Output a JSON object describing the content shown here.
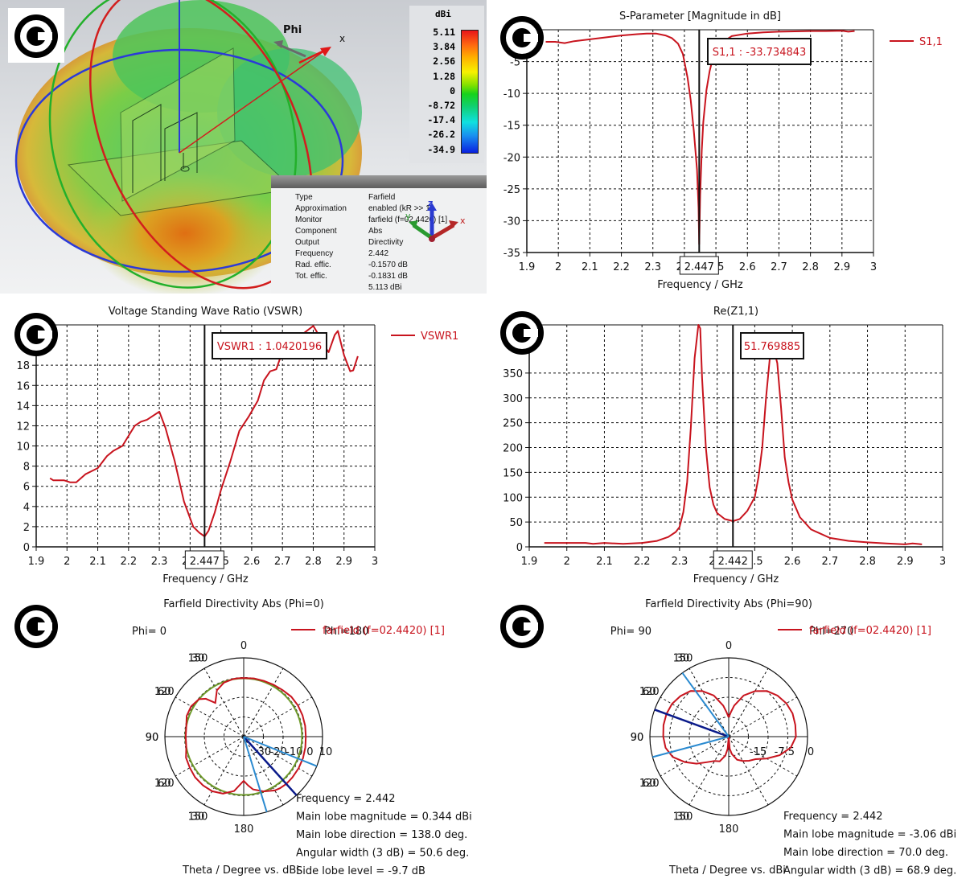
{
  "copyright_symbol": "©",
  "view3d": {
    "phi_label": "Phi",
    "x_axis_label": "x",
    "colorbar": {
      "unit": "dBi",
      "ticks": [
        "5.11",
        "3.84",
        "2.56",
        "1.28",
        "0",
        "-8.72",
        "-17.4",
        "-26.2",
        "-34.9"
      ]
    },
    "info": [
      {
        "key": "Type",
        "value": "Farfield"
      },
      {
        "key": "Approximation",
        "value": "enabled (kR >> 1)"
      },
      {
        "key": "Monitor",
        "value": "farfield (f=02.4420) [1]"
      },
      {
        "key": "Component",
        "value": "Abs"
      },
      {
        "key": "Output",
        "value": "Directivity"
      },
      {
        "key": "Frequency",
        "value": "2.442"
      },
      {
        "key": "Rad. effic.",
        "value": "-0.1570 dB"
      },
      {
        "key": "Tot. effic.",
        "value": "-0.1831 dB"
      },
      {
        "key": "",
        "value": "5.113 dBi"
      }
    ],
    "axes_triad": {
      "x": "x",
      "y": "y",
      "z": "z"
    },
    "colors": {
      "x_axis": "#e02020",
      "y_axis": "#20a030",
      "z_axis": "#2040c0"
    }
  },
  "chart_data": [
    {
      "id": "sparam",
      "type": "line",
      "title": "S-Parameter [Magnitude in dB]",
      "xlabel": "Frequency / GHz",
      "ylabel": "",
      "xlim": [
        1.9,
        3.0
      ],
      "ylim": [
        -35,
        0
      ],
      "xticks": [
        "1.9",
        "2",
        "2.1",
        "2.2",
        "2.3",
        "2.4",
        "2.5",
        "2.6",
        "2.7",
        "2.8",
        "2.9",
        "3"
      ],
      "yticks": [
        "-5",
        "-10",
        "-15",
        "-20",
        "-25",
        "-30",
        "-35"
      ],
      "grid": true,
      "legend": {
        "position": "top-right",
        "entries": [
          "S1,1"
        ]
      },
      "marker": {
        "x": 2.447,
        "x_label": "2.447",
        "annotation": "S1,1 : -33.734843"
      },
      "series": [
        {
          "name": "S1,1",
          "color": "#c8141e",
          "x": [
            1.96,
            1.99,
            2.02,
            2.05,
            2.1,
            2.15,
            2.2,
            2.25,
            2.28,
            2.31,
            2.34,
            2.36,
            2.38,
            2.395,
            2.41,
            2.42,
            2.43,
            2.44,
            2.445,
            2.447,
            2.45,
            2.455,
            2.46,
            2.47,
            2.48,
            2.49,
            2.5,
            2.52,
            2.55,
            2.6,
            2.65,
            2.7,
            2.75,
            2.8,
            2.85,
            2.9,
            2.92,
            2.94
          ],
          "y": [
            -1.9,
            -1.9,
            -2.1,
            -1.8,
            -1.5,
            -1.2,
            -0.9,
            -0.7,
            -0.6,
            -0.6,
            -0.9,
            -1.3,
            -2.2,
            -3.8,
            -7.5,
            -11.0,
            -16.0,
            -22.0,
            -28.0,
            -33.7,
            -26.0,
            -19.0,
            -14.5,
            -9.5,
            -6.5,
            -4.5,
            -3.2,
            -2.0,
            -1.0,
            -0.6,
            -0.4,
            -0.3,
            -0.25,
            -0.2,
            -0.2,
            -0.15,
            -0.3,
            -0.2
          ]
        }
      ]
    },
    {
      "id": "vswr",
      "type": "line",
      "title": "Voltage Standing Wave Ratio (VSWR)",
      "xlabel": "Frequency / GHz",
      "ylabel": "",
      "xlim": [
        1.9,
        3.0
      ],
      "ylim": [
        0,
        22
      ],
      "xticks": [
        "1.9",
        "2",
        "2.1",
        "2.2",
        "2.3",
        "2.4",
        "2.5",
        "2.6",
        "2.7",
        "2.8",
        "2.9",
        "3"
      ],
      "yticks": [
        "0",
        "2",
        "4",
        "6",
        "8",
        "10",
        "12",
        "14",
        "16",
        "18"
      ],
      "grid": true,
      "legend": {
        "position": "top-right",
        "entries": [
          "VSWR1"
        ]
      },
      "marker": {
        "x": 2.447,
        "x_label": "2.447",
        "annotation": "VSWR1 : 1.0420196"
      },
      "series": [
        {
          "name": "VSWR1",
          "color": "#c8141e",
          "x": [
            1.945,
            1.955,
            1.97,
            1.99,
            2.01,
            2.03,
            2.06,
            2.08,
            2.1,
            2.13,
            2.15,
            2.18,
            2.2,
            2.22,
            2.24,
            2.26,
            2.28,
            2.3,
            2.32,
            2.35,
            2.38,
            2.41,
            2.43,
            2.447,
            2.46,
            2.48,
            2.5,
            2.53,
            2.56,
            2.59,
            2.62,
            2.64,
            2.66,
            2.68,
            2.69,
            2.71,
            2.74,
            2.77,
            2.8,
            2.81,
            2.83,
            2.85,
            2.87,
            2.88,
            2.9,
            2.92,
            2.93,
            2.945
          ],
          "y": [
            6.8,
            6.6,
            6.6,
            6.6,
            6.4,
            6.4,
            7.2,
            7.5,
            7.8,
            9.0,
            9.5,
            10.0,
            11.0,
            12.0,
            12.4,
            12.6,
            13.0,
            13.4,
            11.8,
            8.5,
            4.5,
            2.0,
            1.4,
            1.04,
            1.6,
            3.4,
            5.6,
            8.4,
            11.5,
            12.9,
            14.5,
            16.5,
            17.4,
            17.6,
            18.5,
            19.8,
            20.5,
            21.2,
            21.9,
            21.4,
            20.2,
            19.3,
            21.0,
            21.4,
            19.0,
            17.4,
            17.5,
            18.9
          ]
        }
      ]
    },
    {
      "id": "rez",
      "type": "line",
      "title": "Re(Z1,1)",
      "xlabel": "Frequency / GHz",
      "ylabel": "",
      "xlim": [
        1.9,
        3.0
      ],
      "ylim": [
        0,
        447
      ],
      "xticks": [
        "1.9",
        "2",
        "2.1",
        "2.2",
        "2.3",
        "2.4",
        "2.5",
        "2.6",
        "2.7",
        "2.8",
        "2.9",
        "3"
      ],
      "yticks": [
        "0",
        "50",
        "100",
        "150",
        "200",
        "250",
        "300",
        "350"
      ],
      "grid": true,
      "legend": null,
      "marker": {
        "x": 2.442,
        "x_label": "2.442",
        "annotation": "51.769885"
      },
      "series": [
        {
          "name": "Re(Z1,1)",
          "color": "#c8141e",
          "x": [
            1.94,
            2.0,
            2.05,
            2.07,
            2.1,
            2.15,
            2.2,
            2.24,
            2.27,
            2.29,
            2.3,
            2.31,
            2.32,
            2.33,
            2.34,
            2.35,
            2.355,
            2.36,
            2.37,
            2.38,
            2.39,
            2.4,
            2.42,
            2.442,
            2.46,
            2.48,
            2.5,
            2.51,
            2.52,
            2.53,
            2.54,
            2.55,
            2.56,
            2.57,
            2.58,
            2.59,
            2.6,
            2.62,
            2.65,
            2.7,
            2.75,
            2.8,
            2.85,
            2.9,
            2.92,
            2.945
          ],
          "y": [
            8,
            8,
            8,
            6,
            8,
            6,
            8,
            12,
            20,
            30,
            40,
            70,
            130,
            240,
            380,
            447,
            440,
            340,
            200,
            120,
            85,
            68,
            56,
            51.8,
            56,
            72,
            100,
            140,
            200,
            300,
            380,
            400,
            370,
            280,
            180,
            130,
            95,
            60,
            35,
            18,
            12,
            9,
            7,
            5,
            7,
            5
          ]
        }
      ]
    },
    {
      "id": "polar_phi0",
      "type": "polar",
      "title": "Farfield Directivity Abs (Phi=0)",
      "xlabel": "Theta / Degree vs. dBi",
      "legend": {
        "position": "top-right",
        "entries": [
          "farfield (f=02.4420) [1]"
        ]
      },
      "left_label": "Phi=  0",
      "right_label": "Phi=180",
      "angle_ticks": [
        "0",
        "30",
        "60",
        "90",
        "120",
        "150",
        "180",
        "150",
        "120",
        "90",
        "60",
        "30"
      ],
      "radial_ticks": [
        "-30",
        "-20",
        "-10",
        "0",
        "10"
      ],
      "rlim": [
        -40,
        10
      ],
      "reference_circle_db": -3,
      "main_lobe_angle_deg": 138.0,
      "beamwidth_lines_deg": [
        112,
        163
      ],
      "stats": [
        {
          "label": "Frequency = 2.442"
        },
        {
          "label": "Main lobe magnitude =    0.344 dBi"
        },
        {
          "label": "Main lobe direction =  138.0 deg."
        },
        {
          "label": "Angular width (3 dB) =   50.6 deg."
        },
        {
          "label": "Side lobe level =   -9.7 dB"
        }
      ],
      "series": [
        {
          "name": "farfield (f=02.4420) [1]",
          "color": "#c8141e",
          "theta_deg": [
            0,
            10,
            20,
            30,
            40,
            50,
            60,
            70,
            80,
            90,
            100,
            110,
            120,
            130,
            138,
            145,
            150,
            160,
            170,
            175,
            180,
            185,
            190,
            200,
            210,
            220,
            230,
            240,
            250,
            260,
            270,
            280,
            290,
            300,
            310,
            315,
            320,
            330,
            340,
            350,
            355,
            360
          ],
          "db": [
            -2.8,
            -2.5,
            -2.4,
            -2.0,
            -1.5,
            -0.6,
            -0.3,
            -0.3,
            -0.4,
            -0.6,
            -0.3,
            0.0,
            0.2,
            0.3,
            0.34,
            0.0,
            -0.6,
            -3.0,
            -6.0,
            -9.0,
            -12.0,
            -9.0,
            -5.0,
            -1.5,
            0.0,
            0.3,
            0.2,
            -0.5,
            -1.0,
            -3.0,
            -3.2,
            -3.0,
            -1.5,
            -1.5,
            -3.0,
            -6.0,
            -12.0,
            -6.0,
            -3.5,
            -2.8,
            -2.8,
            -2.8
          ]
        }
      ]
    },
    {
      "id": "polar_phi90",
      "type": "polar",
      "title": "Farfield Directivity Abs (Phi=90)",
      "xlabel": "Theta / Degree vs. dBi",
      "legend": {
        "position": "top-right",
        "entries": [
          "farfield (f=02.4420) [1]"
        ]
      },
      "left_label": "Phi= 90",
      "right_label": "Phi=270",
      "angle_ticks": [
        "0",
        "30",
        "60",
        "90",
        "120",
        "150",
        "180",
        "150",
        "120",
        "90",
        "60",
        "30"
      ],
      "radial_ticks": [
        "-15",
        "-7.5",
        "0"
      ],
      "rlim": [
        -22.5,
        0
      ],
      "reference_circle_db": null,
      "main_lobe_angle_deg": 70.0,
      "beamwidth_lines_deg": [
        36,
        105
      ],
      "stats": [
        {
          "label": "Frequency = 2.442"
        },
        {
          "label": "Main lobe magnitude =    -3.06 dBi"
        },
        {
          "label": "Main lobe direction =   70.0 deg."
        },
        {
          "label": "Angular width (3 dB) =   68.9 deg."
        }
      ],
      "series": [
        {
          "name": "farfield (f=02.4420) [1]",
          "color": "#c8141e",
          "theta_deg": [
            0,
            5,
            10,
            20,
            30,
            40,
            50,
            60,
            70,
            80,
            90,
            100,
            110,
            120,
            130,
            140,
            150,
            160,
            170,
            175,
            180,
            185,
            190,
            200,
            210,
            220,
            230,
            240,
            250,
            260,
            270,
            280,
            290,
            300,
            310,
            320,
            330,
            340,
            350,
            355,
            360
          ],
          "db": [
            -17.0,
            -15.5,
            -13.5,
            -10.0,
            -7.5,
            -5.5,
            -4.3,
            -3.5,
            -3.1,
            -3.2,
            -3.3,
            -4.5,
            -7.0,
            -10.0,
            -12.5,
            -13.5,
            -14.5,
            -15.5,
            -17.5,
            -19.0,
            -22.5,
            -19.0,
            -17.0,
            -15.0,
            -14.5,
            -13.0,
            -10.5,
            -8.0,
            -5.5,
            -4.2,
            -3.8,
            -3.6,
            -3.6,
            -3.8,
            -4.5,
            -5.5,
            -7.5,
            -10.0,
            -13.5,
            -15.5,
            -17.0
          ]
        }
      ]
    }
  ]
}
